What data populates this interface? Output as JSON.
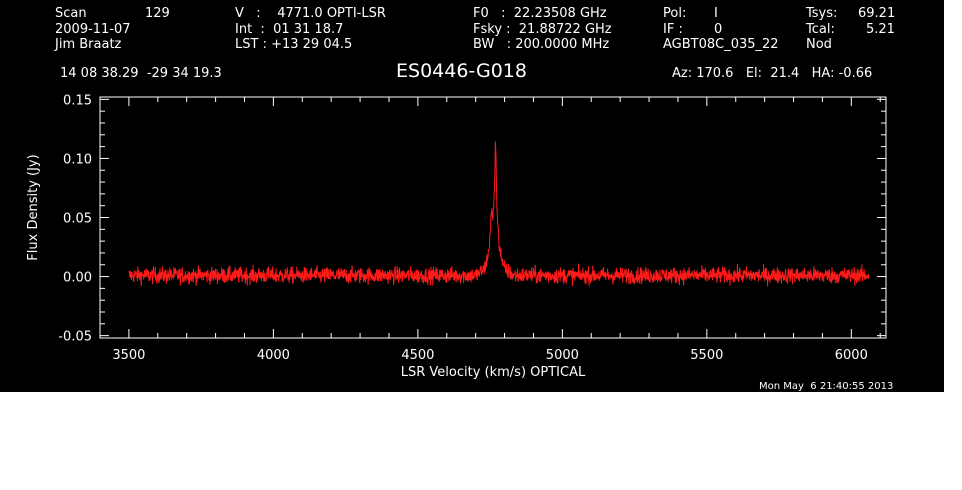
{
  "header": {
    "scan_label": "Scan",
    "scan_value": "129",
    "date": "2009-11-07",
    "observer": "Jim Braatz",
    "v_line": "V   :    4771.0 OPTI-LSR",
    "int_line": "Int  :  01 31 18.7",
    "lst_line": "LST : +13 29 04.5",
    "f0_line": "F0   :  22.23508 GHz",
    "fsky_line": "Fsky :  21.88722 GHz",
    "bw_line": "BW   : 200.0000 MHz",
    "pol_label": "Pol:",
    "pol_value": "I",
    "if_label": "IF :",
    "if_value": "0",
    "project": "AGBT08C_035_22",
    "tsys_label": "Tsys:",
    "tsys_value": "69.21",
    "tcal_label": "Tcal:",
    "tcal_value": "5.21",
    "mode": "Nod",
    "coords": "14 08 38.29  -29 34 19.3",
    "source": "ES0446-G018",
    "az_el_ha": "Az: 170.6   El:  21.4   HA: -0.66"
  },
  "timestamp": "Mon May  6 21:40:55 2013",
  "colors": {
    "background": "#000000",
    "axes": "#ffffff",
    "trace": "#ff1a1a"
  },
  "chart_data": {
    "type": "line",
    "xlabel": "LSR Velocity (km/s) OPTICAL",
    "ylabel": "Flux Density (Jy)",
    "xlim": [
      3400,
      6120
    ],
    "ylim": [
      -0.052,
      0.152
    ],
    "x_ticks": [
      3500,
      4000,
      4500,
      5000,
      5500,
      6000
    ],
    "y_ticks": [
      -0.05,
      0.0,
      0.05,
      0.1,
      0.15
    ],
    "y_tick_labels": [
      "-0.05",
      "0.00",
      "0.05",
      "0.10",
      "0.15"
    ],
    "grid": false,
    "series": [
      {
        "x_range": [
          3500,
          6060
        ],
        "noise_rms": 0.0035,
        "baseline": 0.001,
        "features": [
          {
            "x": 4700,
            "y": 0.001
          },
          {
            "x": 4730,
            "y": 0.006
          },
          {
            "x": 4745,
            "y": 0.02
          },
          {
            "x": 4755,
            "y": 0.055
          },
          {
            "x": 4760,
            "y": 0.048
          },
          {
            "x": 4766,
            "y": 0.085
          },
          {
            "x": 4769,
            "y": 0.12
          },
          {
            "x": 4772,
            "y": 0.07
          },
          {
            "x": 4780,
            "y": 0.03
          },
          {
            "x": 4795,
            "y": 0.008
          },
          {
            "x": 4830,
            "y": 0.001
          }
        ]
      }
    ]
  }
}
